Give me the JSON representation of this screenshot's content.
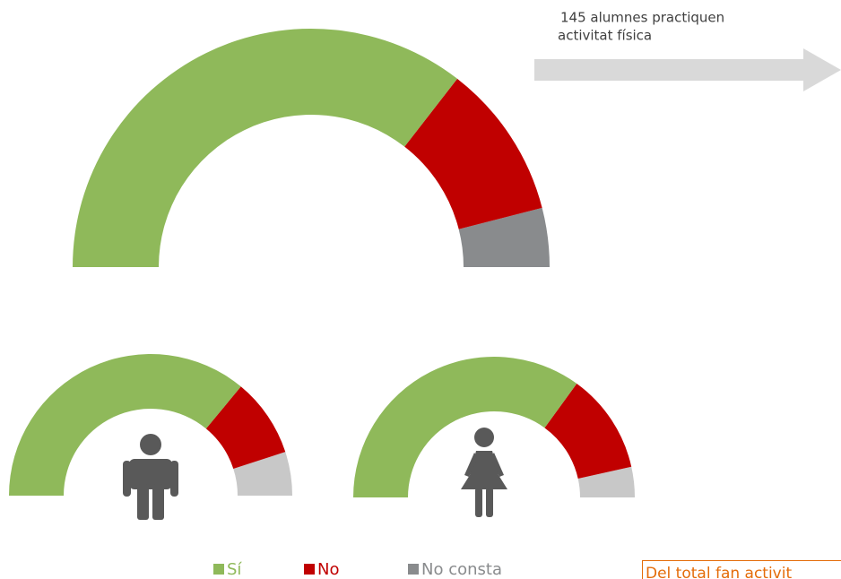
{
  "chart_data": [
    {
      "type": "half-donut",
      "categories": [
        "Sí",
        "No",
        "No consta"
      ],
      "values": [
        71,
        21,
        8
      ],
      "value_labels": [
        "71%",
        "21%",
        "8%"
      ],
      "colors": [
        "#8fb95a",
        "#c00000",
        "#898b8d"
      ]
    },
    {
      "type": "half-donut",
      "values": [
        72,
        18,
        10
      ],
      "value_labels": [
        "72%",
        "18%",
        "10%"
      ],
      "colors": [
        "#8fb95a",
        "#c00000",
        "#c8c8c8"
      ]
    },
    {
      "type": "half-donut",
      "values": [
        70,
        23,
        7
      ],
      "value_labels": [
        "70%",
        "23%",
        "7%"
      ],
      "colors": [
        "#8fb95a",
        "#c00000",
        "#c8c8c8"
      ]
    }
  ],
  "annotation": [
    "145 alumnes practiquen",
    "activitat física"
  ],
  "footer_note": "Del total fan activit"
}
